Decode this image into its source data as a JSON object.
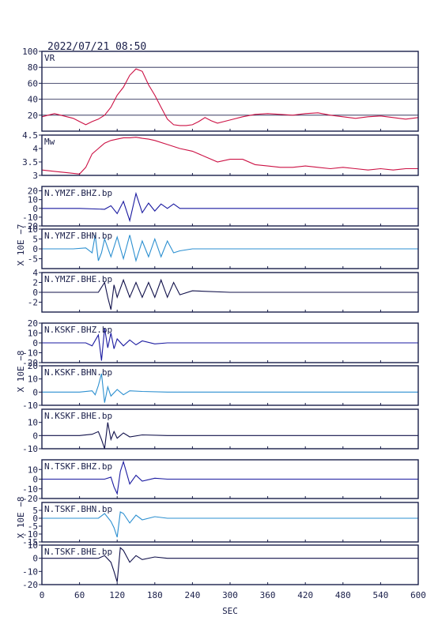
{
  "header": {
    "timestamp": "2022/07/21 08:50"
  },
  "colors": {
    "axes": "#1a1f4a",
    "vr": "#cc1144",
    "mw": "#cc1144",
    "bhz": "#1a1aa0",
    "bhn": "#2b8fd0",
    "bhe": "#10104a"
  },
  "chart_data": {
    "type": "line",
    "xlabel": "SEC",
    "xlim": [
      0,
      600
    ],
    "x_ticks": [
      "0",
      "60",
      "120",
      "180",
      "240",
      "300",
      "360",
      "420",
      "480",
      "540",
      "600"
    ],
    "panels": [
      {
        "id": "vr",
        "label": "VR",
        "ylim": [
          0,
          100
        ],
        "ticks": [
          20,
          40,
          60,
          80,
          100
        ],
        "grid": true,
        "series": [
          {
            "x": [
              0,
              10,
              20,
              30,
              40,
              50,
              60,
              70,
              80,
              90,
              100,
              110,
              120,
              130,
              140,
              150,
              160,
              170,
              180,
              190,
              200,
              210,
              220,
              230,
              240,
              250,
              260,
              270,
              280,
              290,
              300,
              320,
              340,
              360,
              380,
              400,
              420,
              440,
              460,
              480,
              500,
              520,
              540,
              560,
              580,
              600
            ],
            "y": [
              18,
              20,
              22,
              20,
              18,
              16,
              12,
              8,
              12,
              15,
              20,
              30,
              45,
              55,
              70,
              78,
              75,
              58,
              45,
              30,
              15,
              8,
              7,
              7,
              8,
              12,
              17,
              13,
              10,
              12,
              14,
              18,
              21,
              22,
              21,
              20,
              22,
              23,
              20,
              18,
              16,
              18,
              19,
              17,
              15,
              17
            ]
          }
        ]
      },
      {
        "id": "mw",
        "label": "Mw",
        "ylim": [
          3.0,
          4.5
        ],
        "ticks": [
          3.0,
          3.5,
          4.0,
          4.5
        ],
        "grid": false,
        "series": [
          {
            "x": [
              0,
              20,
              40,
              60,
              70,
              80,
              90,
              100,
              110,
              120,
              130,
              140,
              150,
              160,
              170,
              180,
              200,
              220,
              240,
              260,
              280,
              300,
              320,
              340,
              360,
              380,
              400,
              420,
              440,
              460,
              480,
              500,
              520,
              540,
              560,
              580,
              600
            ],
            "y": [
              3.2,
              3.15,
              3.1,
              3.05,
              3.3,
              3.8,
              4.0,
              4.2,
              4.3,
              4.35,
              4.4,
              4.4,
              4.42,
              4.38,
              4.35,
              4.3,
              4.15,
              4.0,
              3.9,
              3.7,
              3.5,
              3.6,
              3.6,
              3.4,
              3.35,
              3.3,
              3.3,
              3.35,
              3.3,
              3.25,
              3.3,
              3.25,
              3.2,
              3.25,
              3.2,
              3.25,
              3.25
            ]
          }
        ]
      },
      {
        "id": "ymzf-bhz",
        "label": "N.YMZF.BHZ.bp",
        "ylim": [
          -20,
          25
        ],
        "ticks": [
          -20,
          -10,
          0,
          10,
          20
        ],
        "grid": false,
        "series": [
          {
            "x": [
              0,
              60,
              100,
              110,
              120,
              130,
              140,
              150,
              160,
              170,
              180,
              190,
              200,
              210,
              220,
              240,
              300,
              400,
              500,
              600
            ],
            "y": [
              0,
              0,
              -1,
              3,
              -6,
              8,
              -14,
              17,
              -5,
              6,
              -3,
              5,
              0,
              5,
              0,
              0,
              0,
              0,
              0,
              0
            ]
          }
        ]
      },
      {
        "id": "ymzf-bhn",
        "label": "N.YMZF.BHN.bp",
        "ylim": [
          -10,
          10
        ],
        "ticks": [
          -5,
          0,
          5,
          10
        ],
        "grid": false,
        "series": [
          {
            "x": [
              0,
              50,
              70,
              80,
              85,
              90,
              95,
              100,
              110,
              120,
              130,
              140,
              150,
              160,
              170,
              180,
              190,
              200,
              210,
              220,
              240,
              300,
              400,
              500,
              600
            ],
            "y": [
              0,
              0,
              0.5,
              -2,
              7,
              -6,
              -2,
              5,
              -4,
              6,
              -5,
              7,
              -6,
              4,
              -4,
              5,
              -4,
              4,
              -2,
              -1,
              0,
              0,
              0,
              0,
              0
            ]
          }
        ]
      },
      {
        "id": "ymzf-bhe",
        "label": "N.YMZF.BHE.bp",
        "ylim": [
          -4,
          4
        ],
        "ticks": [
          -2,
          0,
          2,
          4
        ],
        "grid": false,
        "series": [
          {
            "x": [
              0,
              60,
              90,
              100,
              105,
              110,
              115,
              120,
              130,
              140,
              150,
              160,
              170,
              180,
              190,
              200,
              210,
              220,
              240,
              300,
              400,
              500,
              600
            ],
            "y": [
              0,
              0,
              0,
              2,
              -1,
              -3.5,
              1.5,
              -1,
              2.5,
              -1,
              2,
              -1,
              2,
              -1,
              2.5,
              -1,
              2,
              -0.5,
              0.3,
              0,
              0,
              0,
              0
            ]
          }
        ]
      },
      {
        "id": "kskf-bhz",
        "label": "N.KSKF.BHZ.bp",
        "ylim": [
          -20,
          20
        ],
        "ticks": [
          -20,
          -10,
          0,
          10,
          20
        ],
        "grid": false,
        "series": [
          {
            "x": [
              0,
              50,
              70,
              80,
              90,
              95,
              100,
              105,
              110,
              115,
              120,
              130,
              140,
              150,
              160,
              180,
              200,
              240,
              300,
              400,
              500,
              600
            ],
            "y": [
              0,
              0,
              0,
              -3,
              8,
              -18,
              15,
              -5,
              10,
              -6,
              4,
              -3,
              3,
              -2,
              2,
              -1,
              0,
              0,
              0,
              0,
              0,
              0
            ]
          }
        ]
      },
      {
        "id": "kskf-bhn",
        "label": "N.KSKF.BHN.bp",
        "ylim": [
          -10,
          20
        ],
        "ticks": [
          -10,
          0,
          10,
          20
        ],
        "grid": false,
        "series": [
          {
            "x": [
              0,
              60,
              80,
              85,
              90,
              95,
              100,
              105,
              110,
              120,
              130,
              140,
              160,
              200,
              300,
              400,
              500,
              600
            ],
            "y": [
              0,
              0,
              1,
              -2,
              5,
              14,
              -8,
              4,
              -3,
              2,
              -2,
              1,
              0.5,
              0,
              0,
              0,
              0,
              0
            ]
          }
        ]
      },
      {
        "id": "kskf-bhe",
        "label": "N.KSKF.BHE.bp",
        "ylim": [
          -10,
          20
        ],
        "ticks": [
          -10,
          0,
          10
        ],
        "grid": false,
        "series": [
          {
            "x": [
              0,
              60,
              80,
              90,
              95,
              100,
              105,
              110,
              115,
              120,
              130,
              140,
              160,
              200,
              300,
              400,
              500,
              600
            ],
            "y": [
              0,
              0,
              1,
              3,
              -3,
              -10,
              10,
              -3,
              3,
              -2,
              2,
              -1,
              0.5,
              0,
              0,
              0,
              0,
              0
            ]
          }
        ]
      },
      {
        "id": "tskf-bhz",
        "label": "N.TSKF.BHZ.bp",
        "ylim": [
          -20,
          20
        ],
        "ticks": [
          -20,
          -10,
          0,
          10
        ],
        "grid": false,
        "series": [
          {
            "x": [
              0,
              60,
              100,
              110,
              115,
              120,
              125,
              130,
              140,
              150,
              160,
              180,
              200,
              240,
              300,
              400,
              500,
              600
            ],
            "y": [
              0,
              0,
              0,
              2,
              -8,
              -15,
              8,
              18,
              -5,
              4,
              -2,
              1,
              0,
              0,
              0,
              0,
              0,
              0
            ]
          }
        ]
      },
      {
        "id": "tskf-bhn",
        "label": "N.TSKF.BHN.bp",
        "ylim": [
          -15,
          10
        ],
        "ticks": [
          -15,
          -10,
          -5,
          0,
          5
        ],
        "grid": false,
        "series": [
          {
            "x": [
              0,
              60,
              90,
              100,
              110,
              115,
              120,
              125,
              130,
              140,
              150,
              160,
              180,
              200,
              240,
              300,
              400,
              500,
              600
            ],
            "y": [
              0,
              0,
              0,
              3,
              -2,
              -6,
              -12,
              4,
              3,
              -3,
              2,
              -1,
              1,
              0,
              0,
              0,
              0,
              0,
              0
            ]
          }
        ]
      },
      {
        "id": "tskf-bhe",
        "label": "N.TSKF.BHE.bp",
        "ylim": [
          -20,
          10
        ],
        "ticks": [
          -20,
          -10,
          0,
          10
        ],
        "grid": false,
        "series": [
          {
            "x": [
              0,
              60,
              90,
              100,
              110,
              115,
              120,
              125,
              130,
              140,
              150,
              160,
              180,
              200,
              240,
              300,
              400,
              500,
              600
            ],
            "y": [
              0,
              0,
              0,
              2,
              -3,
              -10,
              -18,
              8,
              6,
              -3,
              2,
              -1,
              1,
              0,
              0,
              0,
              0,
              0,
              0
            ]
          }
        ]
      }
    ],
    "unit_labels": [
      "X 10E −7",
      "X 10E −8",
      "X 10E −8"
    ]
  }
}
